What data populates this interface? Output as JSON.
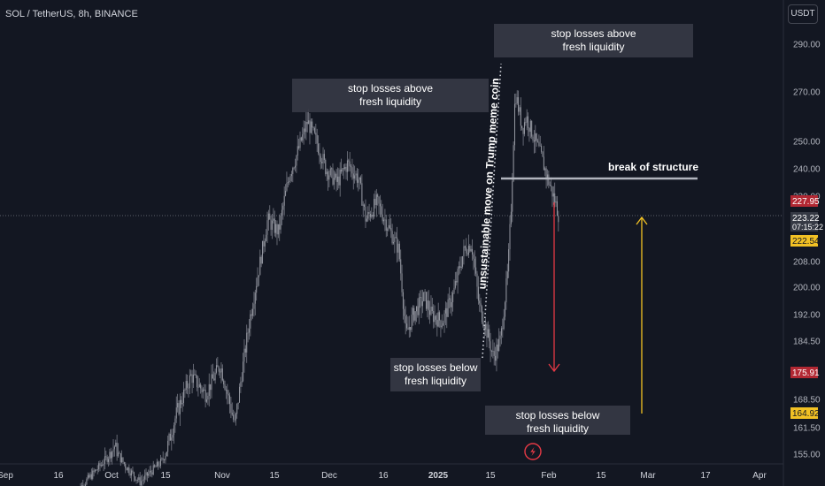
{
  "title": "SOL / TetherUS, 8h, BINANCE",
  "currency_button": "USDT",
  "chart_data": {
    "type": "candlestick",
    "symbol": "SOL / TetherUS",
    "interval": "8h",
    "exchange": "BINANCE",
    "x_ticks": [
      "Sep",
      "16",
      "Oct",
      "15",
      "Nov",
      "15",
      "Dec",
      "16",
      "2025",
      "15",
      "Feb",
      "15",
      "Mar",
      "17",
      "Apr"
    ],
    "y_ticks": [
      "290.00",
      "270.00",
      "250.00",
      "240.00",
      "230.00",
      "208.00",
      "200.00",
      "192.00",
      "184.50",
      "168.50",
      "161.50",
      "155.00"
    ],
    "price_labels": [
      {
        "value": "227.95",
        "color": "#b22833"
      },
      {
        "value": "223.22",
        "sub": "07:15:22",
        "color": "#363a45"
      },
      {
        "value": "222.54",
        "color": "#f2c124"
      },
      {
        "value": "175.91",
        "color": "#b22833"
      },
      {
        "value": "164.92",
        "color": "#f2c124"
      }
    ],
    "current_price": 223.22,
    "price_path": [
      {
        "date": "2024-09-20",
        "price": 138
      },
      {
        "date": "2024-09-27",
        "price": 150
      },
      {
        "date": "2024-10-01",
        "price": 157
      },
      {
        "date": "2024-10-04",
        "price": 150
      },
      {
        "date": "2024-10-08",
        "price": 143
      },
      {
        "date": "2024-10-14",
        "price": 152
      },
      {
        "date": "2024-10-18",
        "price": 165
      },
      {
        "date": "2024-10-22",
        "price": 175
      },
      {
        "date": "2024-10-26",
        "price": 170
      },
      {
        "date": "2024-10-30",
        "price": 178
      },
      {
        "date": "2024-11-03",
        "price": 162
      },
      {
        "date": "2024-11-07",
        "price": 190
      },
      {
        "date": "2024-11-10",
        "price": 208
      },
      {
        "date": "2024-11-12",
        "price": 222
      },
      {
        "date": "2024-11-15",
        "price": 218
      },
      {
        "date": "2024-11-18",
        "price": 238
      },
      {
        "date": "2024-11-20",
        "price": 245
      },
      {
        "date": "2024-11-23",
        "price": 258
      },
      {
        "date": "2024-11-26",
        "price": 248
      },
      {
        "date": "2024-11-28",
        "price": 240
      },
      {
        "date": "2024-12-01",
        "price": 235
      },
      {
        "date": "2024-12-04",
        "price": 242
      },
      {
        "date": "2024-12-07",
        "price": 236
      },
      {
        "date": "2024-12-09",
        "price": 222
      },
      {
        "date": "2024-12-12",
        "price": 228
      },
      {
        "date": "2024-12-15",
        "price": 220
      },
      {
        "date": "2024-12-18",
        "price": 212
      },
      {
        "date": "2024-12-20",
        "price": 186
      },
      {
        "date": "2024-12-22",
        "price": 192
      },
      {
        "date": "2024-12-25",
        "price": 197
      },
      {
        "date": "2024-12-27",
        "price": 192
      },
      {
        "date": "2024-12-30",
        "price": 190
      },
      {
        "date": "2025-01-02",
        "price": 198
      },
      {
        "date": "2025-01-05",
        "price": 212
      },
      {
        "date": "2025-01-07",
        "price": 214
      },
      {
        "date": "2025-01-09",
        "price": 195
      },
      {
        "date": "2025-01-11",
        "price": 188
      },
      {
        "date": "2025-01-13",
        "price": 180
      },
      {
        "date": "2025-01-15",
        "price": 185
      },
      {
        "date": "2025-01-17",
        "price": 205
      },
      {
        "date": "2025-01-18",
        "price": 230
      },
      {
        "date": "2025-01-19",
        "price": 270
      },
      {
        "date": "2025-01-21",
        "price": 255
      },
      {
        "date": "2025-01-22",
        "price": 260
      },
      {
        "date": "2025-01-24",
        "price": 252
      },
      {
        "date": "2025-01-26",
        "price": 245
      },
      {
        "date": "2025-01-28",
        "price": 236
      },
      {
        "date": "2025-01-30",
        "price": 228
      },
      {
        "date": "2025-01-31",
        "price": 223.22
      }
    ],
    "annotations": [
      {
        "text_lines": [
          "stop losses above",
          "fresh liquidity"
        ]
      },
      {
        "text_lines": [
          "stop losses above",
          "fresh liquidity"
        ]
      },
      {
        "text_lines": [
          "stop losses below",
          "fresh liquidity"
        ]
      },
      {
        "text_lines": [
          "stop losses below",
          "fresh liquidity"
        ]
      },
      {
        "text_lines": [
          "break of structure"
        ]
      },
      {
        "text_lines": [
          "unsustainable move on Trump meme coin"
        ]
      }
    ],
    "arrows": [
      {
        "direction": "down",
        "color": "#e53945"
      },
      {
        "direction": "up",
        "color": "#f2c124"
      }
    ]
  }
}
